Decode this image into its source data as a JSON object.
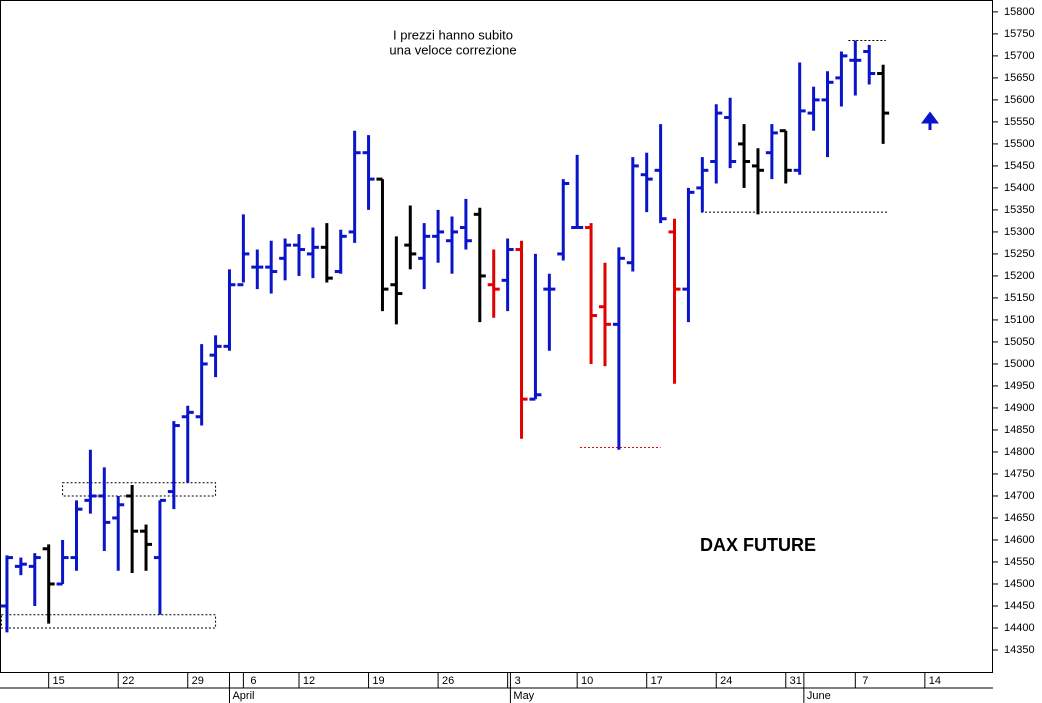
{
  "chart_data": {
    "type": "ohlc",
    "title": "DAX FUTURE",
    "annotation": [
      "I prezzi hanno subito",
      "una veloce correzione"
    ],
    "x": [
      0,
      1,
      2,
      3,
      4,
      5,
      6,
      7,
      8,
      9,
      10,
      11,
      12,
      13,
      14,
      15,
      16,
      17,
      18,
      19,
      20,
      21,
      22,
      23,
      24,
      25,
      26,
      27,
      28,
      29,
      30,
      31,
      32,
      33,
      34,
      35,
      36,
      37,
      38,
      39,
      40,
      41,
      42,
      43,
      44,
      45,
      46,
      47,
      48,
      49,
      50,
      51,
      52,
      53,
      54,
      55,
      56,
      57,
      58,
      59,
      60,
      61,
      62,
      63
    ],
    "open": [
      14450,
      14540,
      14540,
      14580,
      14500,
      14560,
      14690,
      14700,
      14650,
      14700,
      14620,
      14560,
      14710,
      14880,
      14880,
      15020,
      15040,
      15180,
      15220,
      15220,
      15240,
      15270,
      15250,
      15265,
      15210,
      15300,
      15480,
      15420,
      15180,
      15270,
      15240,
      15290,
      15280,
      15310,
      15340,
      15180,
      15190,
      15260,
      14920,
      15170,
      15250,
      15310,
      15310,
      15130,
      15090,
      15230,
      15430,
      15440,
      15300,
      15170,
      15400,
      15460,
      15560,
      15500,
      15450,
      15480,
      15530,
      15440,
      15570,
      15600,
      15650,
      15690,
      15710,
      15660
    ],
    "high": [
      14565,
      14560,
      14570,
      14590,
      14600,
      14690,
      14805,
      14765,
      14700,
      14725,
      14635,
      14690,
      14870,
      14905,
      15045,
      15065,
      15215,
      15340,
      15260,
      15280,
      15285,
      15295,
      15310,
      15320,
      15305,
      15530,
      15520,
      15420,
      15290,
      15360,
      15320,
      15350,
      15335,
      15375,
      15355,
      15260,
      15285,
      15280,
      15250,
      15205,
      15420,
      15475,
      15320,
      15230,
      15265,
      15470,
      15480,
      15545,
      15330,
      15400,
      15470,
      15590,
      15605,
      15545,
      15490,
      15545,
      15530,
      15685,
      15630,
      15665,
      15710,
      15735,
      15725,
      15680
    ],
    "low": [
      14390,
      14520,
      14450,
      14410,
      14500,
      14530,
      14660,
      14575,
      14530,
      14525,
      14530,
      14430,
      14670,
      14730,
      14860,
      14970,
      15030,
      15185,
      15170,
      15160,
      15190,
      15200,
      15195,
      15185,
      15205,
      15275,
      15350,
      15120,
      15090,
      15215,
      15170,
      15230,
      15205,
      15260,
      15095,
      15105,
      15120,
      14830,
      14920,
      15030,
      15235,
      15310,
      15000,
      14995,
      14805,
      15210,
      15345,
      15320,
      14955,
      15095,
      15345,
      15410,
      15445,
      15400,
      15340,
      15420,
      15410,
      15430,
      15530,
      15470,
      15585,
      15610,
      15635,
      15500
    ],
    "close": [
      14560,
      14545,
      14560,
      14500,
      14560,
      14670,
      14700,
      14640,
      14680,
      14620,
      14590,
      14690,
      14860,
      14890,
      15000,
      15040,
      15180,
      15250,
      15220,
      15210,
      15270,
      15260,
      15265,
      15195,
      15290,
      15480,
      15420,
      15170,
      15160,
      15250,
      15290,
      15300,
      15300,
      15280,
      15200,
      15170,
      15260,
      14920,
      14930,
      15170,
      15410,
      15310,
      15110,
      15090,
      15240,
      15450,
      15420,
      15330,
      15170,
      15390,
      15440,
      15570,
      15460,
      15460,
      15440,
      15525,
      15440,
      15575,
      15600,
      15640,
      15700,
      15690,
      15660,
      15570
    ],
    "colors": [
      "#0a14c8",
      "#0a14c8",
      "#0a14c8",
      "#000000",
      "#0a14c8",
      "#0a14c8",
      "#0a14c8",
      "#0a14c8",
      "#0a14c8",
      "#000000",
      "#000000",
      "#0a14c8",
      "#0a14c8",
      "#0a14c8",
      "#0a14c8",
      "#0a14c8",
      "#0a14c8",
      "#0a14c8",
      "#0a14c8",
      "#0a14c8",
      "#0a14c8",
      "#0a14c8",
      "#0a14c8",
      "#000000",
      "#0a14c8",
      "#0a14c8",
      "#0a14c8",
      "#000000",
      "#000000",
      "#000000",
      "#0a14c8",
      "#0a14c8",
      "#0a14c8",
      "#0a14c8",
      "#000000",
      "#e00000",
      "#0a14c8",
      "#e00000",
      "#0a14c8",
      "#0a14c8",
      "#0a14c8",
      "#0a14c8",
      "#e00000",
      "#e00000",
      "#0a14c8",
      "#0a14c8",
      "#0a14c8",
      "#0a14c8",
      "#e00000",
      "#0a14c8",
      "#0a14c8",
      "#0a14c8",
      "#0a14c8",
      "#000000",
      "#000000",
      "#0a14c8",
      "#000000",
      "#0a14c8",
      "#0a14c8",
      "#0a14c8",
      "#0a14c8",
      "#0a14c8",
      "#0a14c8",
      "#000000"
    ],
    "levels": [
      {
        "value": 15735,
        "from": 60.5,
        "to": 63.2,
        "color": "#000000"
      },
      {
        "value": 15345,
        "from": 49.9,
        "to": 63.4,
        "color": "#000000"
      },
      {
        "value": 14810,
        "from": 41.2,
        "to": 47,
        "color": "#e00000"
      }
    ],
    "boxes": [
      {
        "low": 14700,
        "high": 14730,
        "from": 4,
        "to": 15
      },
      {
        "low": 14400,
        "high": 14430,
        "from": -0.4,
        "to": 15
      }
    ],
    "xlim": [
      -0.5,
      70.9
    ],
    "ylim": [
      14300,
      15827
    ],
    "yticks": [
      14350,
      14400,
      14450,
      14500,
      14550,
      14600,
      14650,
      14700,
      14750,
      14800,
      14850,
      14900,
      14950,
      15000,
      15050,
      15100,
      15150,
      15200,
      15250,
      15300,
      15350,
      15400,
      15450,
      15500,
      15550,
      15600,
      15650,
      15700,
      15750,
      15800
    ],
    "xticks": [
      {
        "value": 3,
        "label": "15"
      },
      {
        "value": 8,
        "label": "22"
      },
      {
        "value": 13,
        "label": "29"
      },
      {
        "value": 17,
        "label": "6"
      },
      {
        "value": 21,
        "label": "12"
      },
      {
        "value": 26,
        "label": "19"
      },
      {
        "value": 31,
        "label": "26"
      },
      {
        "value": 36,
        "label": "3"
      },
      {
        "value": 41,
        "label": "10"
      },
      {
        "value": 46,
        "label": "17"
      },
      {
        "value": 51,
        "label": "24"
      },
      {
        "value": 56,
        "label": "31"
      },
      {
        "value": 61,
        "label": "7"
      },
      {
        "value": 66,
        "label": "14"
      }
    ],
    "months": [
      {
        "value": 16,
        "label": "April"
      },
      {
        "value": 36.2,
        "label": "May"
      },
      {
        "value": 57.3,
        "label": "June"
      }
    ]
  }
}
